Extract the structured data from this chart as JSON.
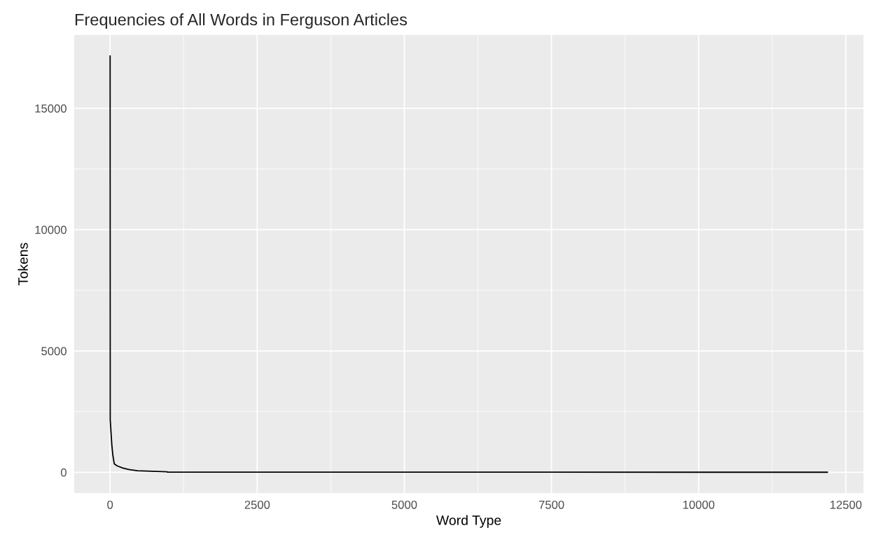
{
  "chart_data": {
    "type": "line",
    "title": "Frequencies of All Words in Ferguson Articles",
    "xlabel": "Word Type",
    "ylabel": "Tokens",
    "series": [
      {
        "color": "#000000",
        "x": [
          1,
          3,
          30,
          48,
          71,
          123,
          222,
          320,
          467,
          973,
          975,
          12190
        ],
        "values": [
          17160,
          2160,
          1130,
          700,
          350,
          260,
          170,
          115,
          60,
          20,
          5,
          1
        ]
      }
    ],
    "xlim": [
      -609,
      12800
    ],
    "xticks": [
      0,
      2500,
      5000,
      7500,
      10000,
      12500
    ],
    "ylim": [
      -857,
      18020
    ],
    "yticks": [
      0,
      5000,
      10000,
      15000
    ],
    "grid": true,
    "legend": false
  }
}
